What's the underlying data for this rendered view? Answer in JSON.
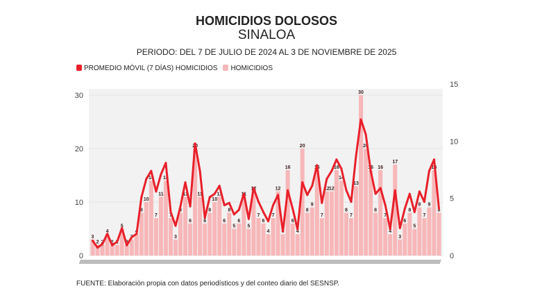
{
  "header": {
    "title": "HOMICIDIOS DOLOSOS",
    "subtitle": "SINALOA",
    "period": "PERIODO: DEL 7 DE JULIO DE 2024 AL 3 DE NOVIEMBRE DE 2025"
  },
  "footer": {
    "source": "FUENTE: Elaboración propia con datos periodísticos y del conteo diario del SESNSP."
  },
  "chart_data": {
    "type": "bar+line",
    "title": "HOMICIDIOS DOLOSOS",
    "legend_position": "top-left",
    "grid": true,
    "x_range": [
      "2024-07-07",
      "2025-11-03"
    ],
    "left_axis": {
      "ylim": [
        0,
        30
      ],
      "ticks": [
        "0",
        "10",
        "20",
        "30"
      ]
    },
    "right_axis": {
      "ylim": [
        0,
        15
      ],
      "ticks": [
        "0",
        "5",
        "10",
        "15"
      ]
    },
    "colors": {
      "line": "#e8202a",
      "bars": "#f7b7b9",
      "plot_bg": "#f2f2f2"
    },
    "series": [
      {
        "name": "PROMEDIO MÓVIL (7 DÍAS) HOMICIDIOS",
        "axis": "right",
        "type": "line",
        "values": [
          1.3,
          0.7,
          1.0,
          1.9,
          0.9,
          1.2,
          2.4,
          0.9,
          1.6,
          1.9,
          5.1,
          6.7,
          7.4,
          5.6,
          7.1,
          8.1,
          3.8,
          2.6,
          4.3,
          6.4,
          4.3,
          9.8,
          7.4,
          3.3,
          5.1,
          5.4,
          6.1,
          4.4,
          4.6,
          3.6,
          4.0,
          5.4,
          3.2,
          5.9,
          4.7,
          3.8,
          3.0,
          4.4,
          5.3,
          2.1,
          5.7,
          4.1,
          2.3,
          6.4,
          5.3,
          6.1,
          7.9,
          4.6,
          6.7,
          7.4,
          8.4,
          7.6,
          5.7,
          4.7,
          8.7,
          11.9,
          10.6,
          7.4,
          5.4,
          5.9,
          4.4,
          2.3,
          5.7,
          2.4,
          4.1,
          5.4,
          3.8,
          5.6,
          4.7,
          7.4,
          8.4,
          4.1
        ]
      },
      {
        "name": "HOMICIDIOS",
        "axis": "left",
        "type": "bar",
        "values": [
          3,
          2,
          2,
          4,
          2,
          2,
          5,
          2,
          3,
          4,
          8,
          10,
          14,
          7,
          11,
          14,
          7,
          3,
          8,
          11,
          6,
          20,
          11,
          6,
          8,
          10,
          11,
          6,
          8,
          5,
          6,
          11,
          5,
          12,
          7,
          6,
          4,
          7,
          12,
          4,
          16,
          6,
          4,
          20,
          8,
          9,
          16,
          7,
          12,
          12,
          16,
          14,
          8,
          7,
          13,
          30,
          20,
          16,
          8,
          16,
          7,
          4,
          17,
          3,
          6,
          8,
          5,
          9,
          7,
          9,
          16,
          8
        ]
      }
    ]
  }
}
